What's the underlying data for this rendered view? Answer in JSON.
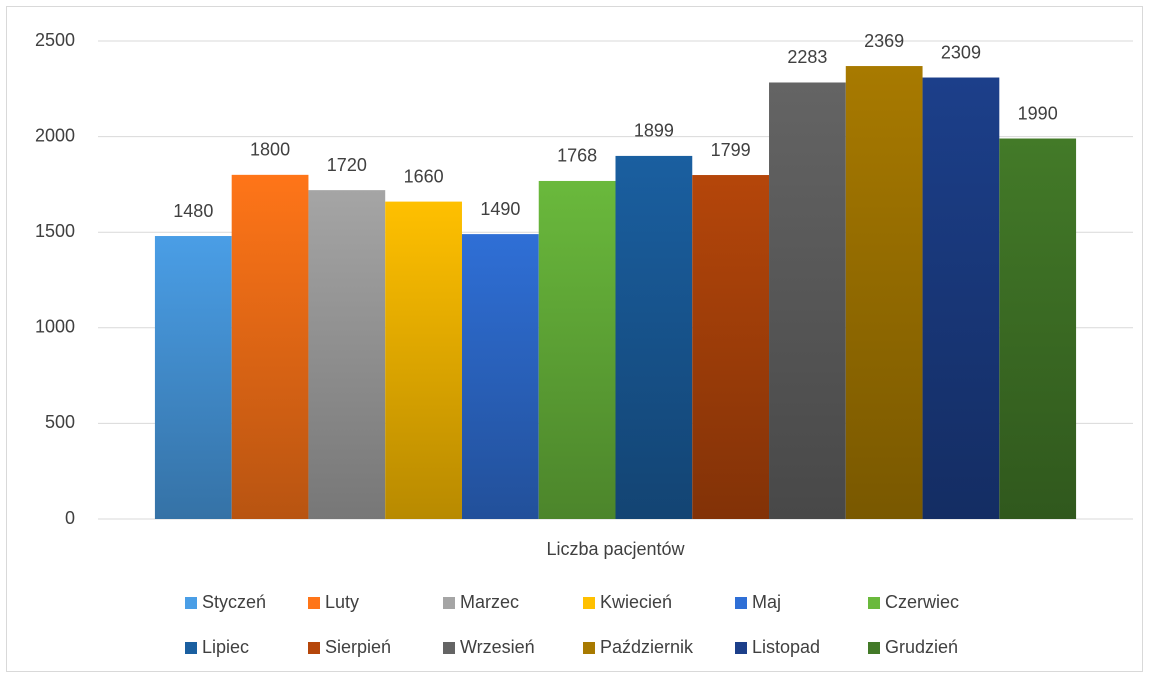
{
  "chart_data": {
    "type": "bar",
    "categories": [
      "Liczba pacjentów"
    ],
    "series": [
      {
        "name": "Styczeń",
        "color": "#4a9ee6",
        "values": [
          1480
        ]
      },
      {
        "name": "Luty",
        "color": "#ff7518",
        "values": [
          1800
        ]
      },
      {
        "name": "Marzec",
        "color": "#a5a5a5",
        "values": [
          1720
        ]
      },
      {
        "name": "Kwiecień",
        "color": "#ffc000",
        "values": [
          1660
        ]
      },
      {
        "name": "Maj",
        "color": "#2f6fd6",
        "values": [
          1490
        ]
      },
      {
        "name": "Czerwiec",
        "color": "#6ab93c",
        "values": [
          1768
        ]
      },
      {
        "name": "Lipiec",
        "color": "#1a5fa0",
        "values": [
          1899
        ]
      },
      {
        "name": "Sierpień",
        "color": "#b5460a",
        "values": [
          1799
        ]
      },
      {
        "name": "Wrzesień",
        "color": "#646464",
        "values": [
          2283
        ]
      },
      {
        "name": "Październik",
        "color": "#a87a00",
        "values": [
          2369
        ]
      },
      {
        "name": "Listopad",
        "color": "#1c3f8a",
        "values": [
          2309
        ]
      },
      {
        "name": "Grudzień",
        "color": "#437a28",
        "values": [
          1990
        ]
      }
    ],
    "ylim": [
      0,
      2500
    ],
    "yticks": [
      0,
      500,
      1000,
      1500,
      2000,
      2500
    ],
    "grid": true,
    "legend": "bottom"
  }
}
